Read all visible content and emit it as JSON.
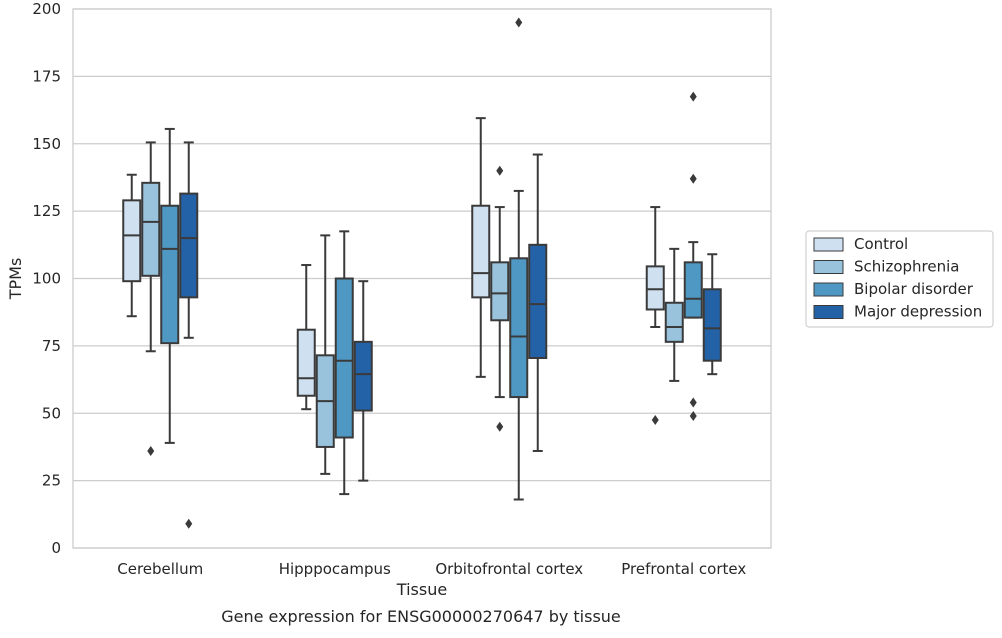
{
  "chart_data": {
    "type": "boxplot",
    "title": "",
    "caption": "Gene expression for ENSG00000270647 by tissue",
    "xlabel": "Tissue",
    "ylabel": "TPMs",
    "ylim": [
      0,
      200
    ],
    "yticks": [
      0,
      25,
      50,
      75,
      100,
      125,
      150,
      175,
      200
    ],
    "grid": "horizontal",
    "legend_position": "right",
    "categories": [
      "Cerebellum",
      "Hipppocampus",
      "Orbitofrontal cortex",
      "Prefrontal cortex"
    ],
    "series": [
      {
        "name": "Control",
        "color": "#cfe0f0",
        "boxes": [
          {
            "whisker_low": 86,
            "q1": 99,
            "median": 116,
            "q3": 129,
            "whisker_high": 138.5,
            "outliers": []
          },
          {
            "whisker_low": 51.5,
            "q1": 56.5,
            "median": 63,
            "q3": 81,
            "whisker_high": 105,
            "outliers": []
          },
          {
            "whisker_low": 63.5,
            "q1": 93,
            "median": 102,
            "q3": 127,
            "whisker_high": 159.5,
            "outliers": []
          },
          {
            "whisker_low": 82,
            "q1": 88.5,
            "median": 96,
            "q3": 104.5,
            "whisker_high": 126.5,
            "outliers": [
              47.5
            ]
          }
        ]
      },
      {
        "name": "Schizophrenia",
        "color": "#99c3dd",
        "boxes": [
          {
            "whisker_low": 73,
            "q1": 101,
            "median": 121,
            "q3": 135.5,
            "whisker_high": 150.5,
            "outliers": [
              36
            ]
          },
          {
            "whisker_low": 27.5,
            "q1": 37.5,
            "median": 54.5,
            "q3": 71.5,
            "whisker_high": 116,
            "outliers": []
          },
          {
            "whisker_low": 56,
            "q1": 84.5,
            "median": 94.5,
            "q3": 106,
            "whisker_high": 126.5,
            "outliers": [
              45,
              140
            ]
          },
          {
            "whisker_low": 62,
            "q1": 76.5,
            "median": 82,
            "q3": 91,
            "whisker_high": 111,
            "outliers": []
          }
        ]
      },
      {
        "name": "Bipolar disorder",
        "color": "#5098c4",
        "boxes": [
          {
            "whisker_low": 39,
            "q1": 76,
            "median": 111,
            "q3": 127,
            "whisker_high": 155.5,
            "outliers": []
          },
          {
            "whisker_low": 20,
            "q1": 41,
            "median": 69.5,
            "q3": 100,
            "whisker_high": 117.5,
            "outliers": []
          },
          {
            "whisker_low": 18,
            "q1": 56,
            "median": 78.5,
            "q3": 107.5,
            "whisker_high": 132.5,
            "outliers": [
              195
            ]
          },
          {
            "whisker_low": 85.5,
            "q1": 85.5,
            "median": 92.5,
            "q3": 106,
            "whisker_high": 113.5,
            "outliers": [
              49,
              54,
              137,
              167.5
            ]
          }
        ]
      },
      {
        "name": "Major depression",
        "color": "#2462a7",
        "boxes": [
          {
            "whisker_low": 78,
            "q1": 93,
            "median": 115,
            "q3": 131.5,
            "whisker_high": 150.5,
            "outliers": [
              9
            ]
          },
          {
            "whisker_low": 25,
            "q1": 51,
            "median": 64.5,
            "q3": 76.5,
            "whisker_high": 99,
            "outliers": []
          },
          {
            "whisker_low": 36,
            "q1": 70.5,
            "median": 90.5,
            "q3": 112.5,
            "whisker_high": 146,
            "outliers": []
          },
          {
            "whisker_low": 64.5,
            "q1": 69.5,
            "median": 81.5,
            "q3": 96,
            "whisker_high": 109,
            "outliers": []
          }
        ]
      }
    ]
  }
}
